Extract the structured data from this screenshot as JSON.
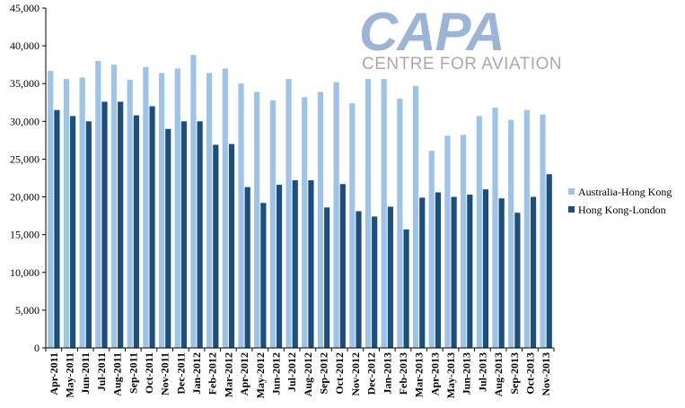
{
  "logo": {
    "name": "CAPA",
    "tagline": "CENTRE FOR AVIATION"
  },
  "chart_data": {
    "type": "bar",
    "categories": [
      "Apr-2011",
      "May-2011",
      "Jun-2011",
      "Jul-2011",
      "Aug-2011",
      "Sep-2011",
      "Oct-2011",
      "Nov-2011",
      "Dec-2011",
      "Jan-2012",
      "Feb-2012",
      "Mar-2012",
      "Apr-2012",
      "May-2012",
      "Jun-2012",
      "Jul-2012",
      "Aug-2012",
      "Sep-2012",
      "Oct-2012",
      "Nov-2012",
      "Dec-2012",
      "Jan-2013",
      "Feb-2013",
      "Mar-2013",
      "Apr-2013",
      "May-2013",
      "Jun-2013",
      "Jul-2013",
      "Aug-2013",
      "Sep-2013",
      "Oct-2013",
      "Nov-2013"
    ],
    "series": [
      {
        "name": "Australia-Hong Kong",
        "color": "#9dc3e6",
        "values": [
          36700,
          35600,
          35800,
          38000,
          37500,
          35500,
          37200,
          36400,
          37000,
          38800,
          36400,
          37000,
          35000,
          33900,
          32800,
          35600,
          33200,
          33900,
          35200,
          32400,
          35600,
          35600,
          33000,
          34700,
          26100,
          28100,
          28200,
          30700,
          31800,
          30200,
          31500,
          30900
        ]
      },
      {
        "name": "Hong Kong-London",
        "color": "#1b4f7e",
        "values": [
          31500,
          30700,
          30000,
          32600,
          32600,
          30800,
          32000,
          29000,
          30000,
          30000,
          26900,
          27000,
          21300,
          19200,
          21600,
          22200,
          22200,
          18600,
          21700,
          18100,
          17400,
          18700,
          15700,
          19900,
          20600,
          20000,
          20300,
          21000,
          19800,
          17900,
          20000,
          23000
        ]
      }
    ],
    "ylim": [
      0,
      45000
    ],
    "yticks": [
      "0",
      "5,000",
      "10,000",
      "15,000",
      "20,000",
      "25,000",
      "30,000",
      "35,000",
      "40,000",
      "45,000"
    ],
    "grid": false,
    "legend_position": "right"
  }
}
